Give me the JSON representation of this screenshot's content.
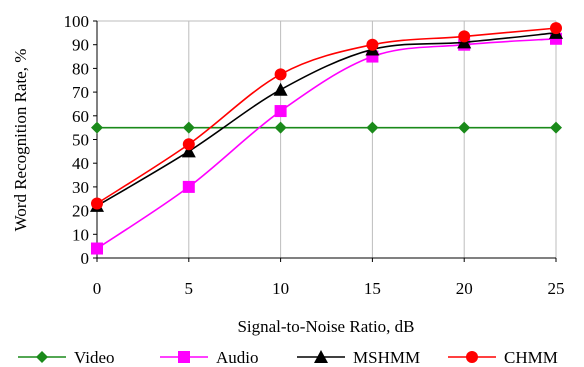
{
  "chart_data": {
    "type": "line",
    "x": [
      0,
      5,
      10,
      15,
      20,
      25
    ],
    "xlabel": "Signal-to-Noise Ratio, dB",
    "ylabel": "Word Recognition Rate, %",
    "xlim": [
      0,
      25
    ],
    "ylim": [
      0,
      100
    ],
    "xticks": [
      "0",
      "5",
      "10",
      "15",
      "20",
      "25"
    ],
    "yticks": [
      "0",
      "10",
      "20",
      "30",
      "40",
      "50",
      "60",
      "70",
      "80",
      "90",
      "100"
    ],
    "grid": "vertical",
    "legend_position": "bottom",
    "series": [
      {
        "name": "Video",
        "values": [
          55,
          55,
          55,
          55,
          55,
          55
        ],
        "color": "#1a8a1a",
        "marker": "diamond"
      },
      {
        "name": "Audio",
        "values": [
          4,
          30,
          62,
          85,
          90,
          92.5
        ],
        "color": "#ff00ff",
        "marker": "square"
      },
      {
        "name": "MSHMM",
        "values": [
          22,
          45,
          71,
          88,
          91,
          95
        ],
        "color": "#000000",
        "marker": "triangle"
      },
      {
        "name": "CHMM",
        "values": [
          23,
          48,
          77.5,
          90,
          93.5,
          97
        ],
        "color": "#ff0000",
        "marker": "circle"
      }
    ]
  }
}
